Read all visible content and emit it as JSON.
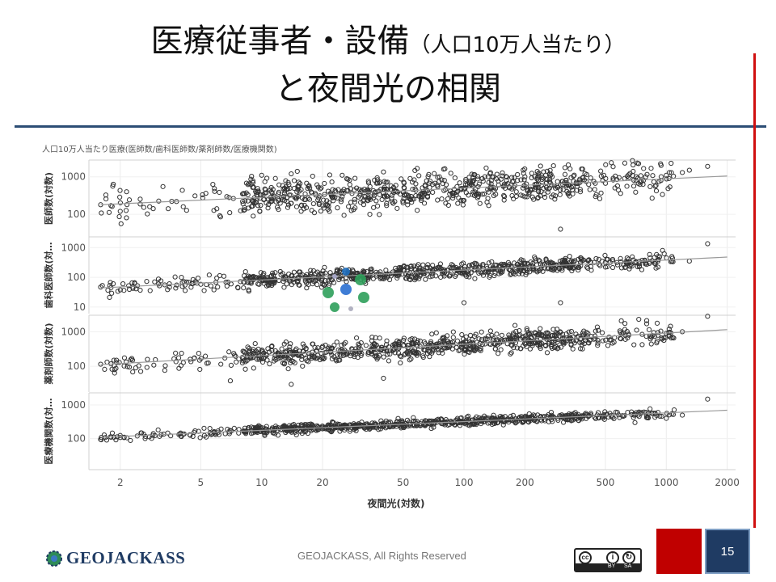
{
  "slide": {
    "title_line1": "医療従事者・設備",
    "title_line1_small": "（人口10万人当たり）",
    "title_line2": "と夜間光の相関",
    "footer_text": "GEOJACKASS, All Rights Reserved",
    "logo_text": "GEOJACKASS",
    "page_number": "15",
    "license": {
      "cc_label": "cc",
      "by_label": "BY",
      "sa_label": "SA"
    }
  },
  "colors": {
    "title_rule": "#2c4d75",
    "side_rule": "#d01010",
    "marker": "#333333",
    "trend": "#999999",
    "nav_red": "#c00000",
    "nav_blue": "#1f3b63"
  },
  "chart_data": {
    "type": "scatter",
    "title": "人口10万人当たり医療(医師数/歯科医師数/薬剤師数/医療機関数)",
    "xlabel": "夜間光(対数)",
    "x_scale": "log",
    "xlim": [
      1.4,
      2200
    ],
    "x_ticks": [
      2,
      5,
      10,
      20,
      50,
      100,
      200,
      500,
      1000,
      2000
    ],
    "x_tick_labels": [
      "2",
      "5",
      "10",
      "20",
      "50",
      "100",
      "200",
      "500",
      "1000",
      "2000"
    ],
    "grid": true,
    "legend": "none",
    "panels": [
      {
        "name": "医師数",
        "ylabel": "医師数(対数)",
        "y_scale": "log",
        "ylim": [
          25,
          2800
        ],
        "y_ticks": [
          100,
          1000
        ],
        "y_tick_labels": [
          "100",
          "1000"
        ],
        "trend": [
          [
            1.6,
            180
          ],
          [
            2000,
            1050
          ]
        ],
        "spread": 1.7,
        "outliers": [
          [
            1.6,
            180
          ],
          [
            1.8,
            170
          ],
          [
            2.0,
            120
          ],
          [
            10,
            1100
          ],
          [
            14,
            1200
          ],
          [
            15,
            1400
          ],
          [
            25,
            1100
          ],
          [
            40,
            1350
          ],
          [
            200,
            1000
          ],
          [
            1000,
            1100
          ],
          [
            1200,
            1300
          ],
          [
            1300,
            1500
          ],
          [
            1600,
            1900
          ],
          [
            300,
            40
          ]
        ]
      },
      {
        "name": "歯科医師数",
        "ylabel": "歯科医師数(対…",
        "y_scale": "log",
        "ylim": [
          6,
          2300
        ],
        "y_ticks": [
          10,
          100,
          1000
        ],
        "y_tick_labels": [
          "10",
          "100",
          "1000"
        ],
        "trend": [
          [
            1.6,
            44
          ],
          [
            2000,
            480
          ]
        ],
        "spread": 1.35,
        "outliers": [
          [
            1.6,
            47
          ],
          [
            1.8,
            45
          ],
          [
            2.2,
            52
          ],
          [
            110,
            270
          ],
          [
            160,
            250
          ],
          [
            220,
            200
          ],
          [
            500,
            220
          ],
          [
            700,
            310
          ],
          [
            1300,
            350
          ],
          [
            1600,
            1350
          ],
          [
            100,
            14
          ],
          [
            300,
            14
          ],
          [
            800,
            270
          ]
        ]
      },
      {
        "name": "薬剤師数",
        "ylabel": "薬剤師数(対数)",
        "y_scale": "log",
        "ylim": [
          18,
          3000
        ],
        "y_ticks": [
          100,
          1000
        ],
        "y_tick_labels": [
          "100",
          "1000"
        ],
        "trend": [
          [
            1.6,
            112
          ],
          [
            2000,
            1150
          ]
        ],
        "spread": 1.45,
        "outliers": [
          [
            1.6,
            115
          ],
          [
            1.8,
            118
          ],
          [
            2.3,
            150
          ],
          [
            14,
            30
          ],
          [
            7,
            38
          ],
          [
            800,
            1700
          ],
          [
            800,
            2100
          ],
          [
            1000,
            900
          ],
          [
            1200,
            1000
          ],
          [
            1600,
            2800
          ],
          [
            40,
            45
          ]
        ]
      },
      {
        "name": "医療機関数",
        "ylabel": "医療機関数(対…",
        "y_scale": "log",
        "ylim": [
          12,
          2300
        ],
        "y_ticks": [
          100,
          1000
        ],
        "y_tick_labels": [
          "100",
          "1000"
        ],
        "trend": [
          [
            1.6,
            110
          ],
          [
            2000,
            700
          ]
        ],
        "spread": 1.16,
        "outliers": [
          [
            1.6,
            95
          ],
          [
            1.8,
            110
          ],
          [
            2.0,
            108
          ],
          [
            700,
            300
          ],
          [
            800,
            420
          ],
          [
            1000,
            400
          ],
          [
            1200,
            500
          ],
          [
            1600,
            1500
          ]
        ]
      }
    ]
  }
}
